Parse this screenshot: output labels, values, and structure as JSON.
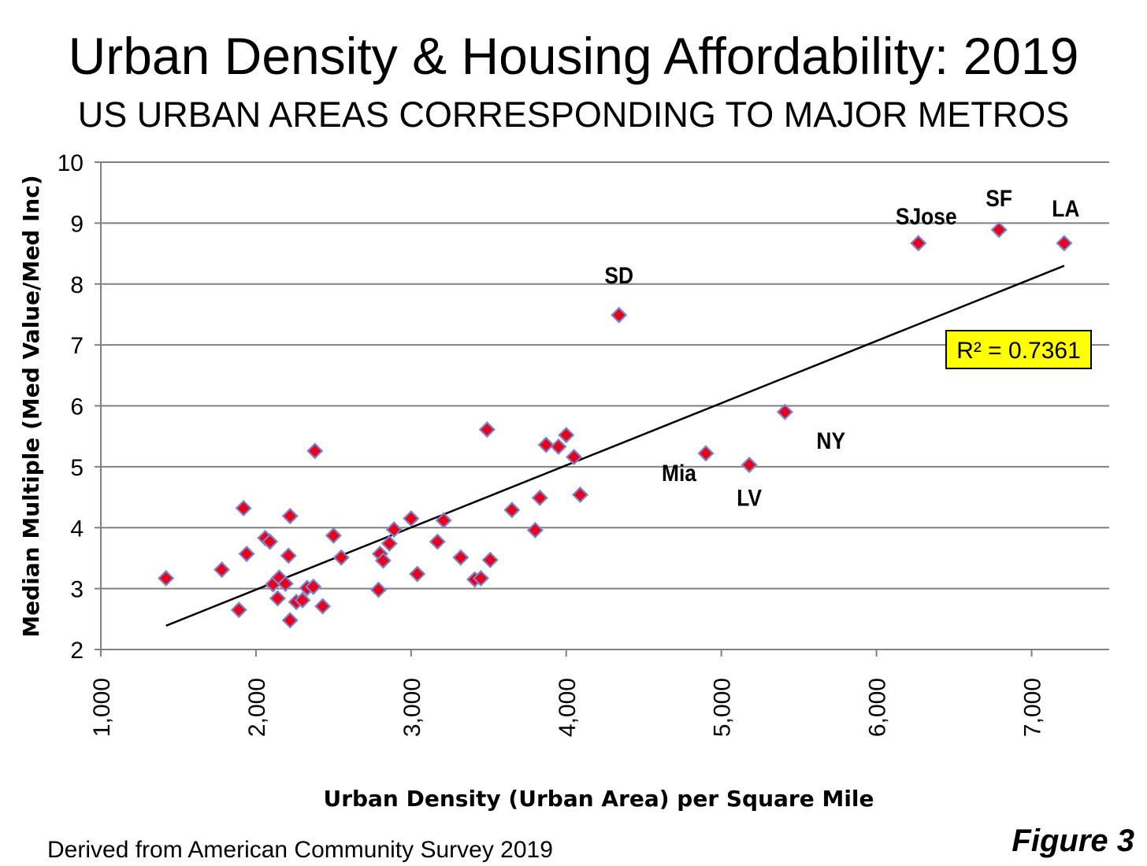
{
  "header": {
    "title": "Urban Density & Housing Affordability: 2019",
    "subtitle": "US URBAN AREAS CORRESPONDING TO MAJOR METROS"
  },
  "footer": {
    "source": "Derived from American Community Survey 2019",
    "figure_label": "Figure 3"
  },
  "colors": {
    "marker_fill": "#e8001c",
    "marker_stroke": "#7b84c8",
    "trendline": "#000000",
    "grid": "#808080",
    "r2_box_fill": "#ffff00"
  },
  "chart_data": {
    "type": "scatter",
    "title": "Urban Density & Housing Affordability: 2019",
    "subtitle": "US URBAN AREAS CORRESPONDING TO MAJOR METROS",
    "xlabel": "Urban Density (Urban Area) per Square Mile",
    "ylabel": "Median Multiple (Med Value/Med Inc)",
    "xlim": [
      1000,
      7500
    ],
    "ylim": [
      2,
      10
    ],
    "x_ticks": [
      1000,
      2000,
      3000,
      4000,
      5000,
      6000,
      7000
    ],
    "x_tick_labels": [
      "1,000",
      "2,000",
      "3,000",
      "4,000",
      "5,000",
      "6,000",
      "7,000"
    ],
    "y_ticks": [
      2,
      3,
      4,
      5,
      6,
      7,
      8,
      9,
      10
    ],
    "y_tick_labels": [
      "2",
      "3",
      "4",
      "5",
      "6",
      "7",
      "8",
      "9",
      "10"
    ],
    "grid": "horizontal",
    "legend": "none",
    "marker": "diamond",
    "points": [
      {
        "x": 1420,
        "y": 3.17
      },
      {
        "x": 1780,
        "y": 3.31
      },
      {
        "x": 1890,
        "y": 2.65
      },
      {
        "x": 1920,
        "y": 4.32
      },
      {
        "x": 1940,
        "y": 3.57
      },
      {
        "x": 2060,
        "y": 3.83
      },
      {
        "x": 2090,
        "y": 3.77
      },
      {
        "x": 2110,
        "y": 3.07
      },
      {
        "x": 2140,
        "y": 2.84
      },
      {
        "x": 2150,
        "y": 3.18
      },
      {
        "x": 2190,
        "y": 3.08
      },
      {
        "x": 2210,
        "y": 3.54
      },
      {
        "x": 2220,
        "y": 4.19
      },
      {
        "x": 2220,
        "y": 2.48
      },
      {
        "x": 2260,
        "y": 2.78
      },
      {
        "x": 2300,
        "y": 2.81
      },
      {
        "x": 2330,
        "y": 3.01
      },
      {
        "x": 2370,
        "y": 3.03
      },
      {
        "x": 2380,
        "y": 5.26
      },
      {
        "x": 2430,
        "y": 2.71
      },
      {
        "x": 2500,
        "y": 3.87
      },
      {
        "x": 2550,
        "y": 3.51
      },
      {
        "x": 2790,
        "y": 2.98
      },
      {
        "x": 2800,
        "y": 3.57
      },
      {
        "x": 2820,
        "y": 3.46
      },
      {
        "x": 2860,
        "y": 3.74
      },
      {
        "x": 2890,
        "y": 3.97
      },
      {
        "x": 3000,
        "y": 4.15
      },
      {
        "x": 3040,
        "y": 3.24
      },
      {
        "x": 3170,
        "y": 3.77
      },
      {
        "x": 3210,
        "y": 4.12
      },
      {
        "x": 3320,
        "y": 3.51
      },
      {
        "x": 3410,
        "y": 3.15
      },
      {
        "x": 3450,
        "y": 3.17
      },
      {
        "x": 3490,
        "y": 5.61
      },
      {
        "x": 3510,
        "y": 3.47
      },
      {
        "x": 3650,
        "y": 4.29
      },
      {
        "x": 3800,
        "y": 3.96
      },
      {
        "x": 3830,
        "y": 4.49
      },
      {
        "x": 3870,
        "y": 5.36
      },
      {
        "x": 3950,
        "y": 5.33
      },
      {
        "x": 4000,
        "y": 5.52
      },
      {
        "x": 4050,
        "y": 5.16
      },
      {
        "x": 4090,
        "y": 4.54
      },
      {
        "x": 4340,
        "y": 7.49,
        "label": "SD"
      },
      {
        "x": 4900,
        "y": 5.22,
        "label": "Mia"
      },
      {
        "x": 5180,
        "y": 5.03,
        "label": "LV"
      },
      {
        "x": 5410,
        "y": 5.9,
        "label": "NY"
      },
      {
        "x": 6270,
        "y": 8.67,
        "label": "SJose"
      },
      {
        "x": 6790,
        "y": 8.89,
        "label": "SF"
      },
      {
        "x": 7210,
        "y": 8.67,
        "label": "LA"
      }
    ],
    "trendline": {
      "type": "linear",
      "x": [
        1420,
        7210
      ],
      "y": [
        2.39,
        8.3
      ]
    },
    "annotations": [
      {
        "text": "R² = 0.7361"
      }
    ]
  }
}
